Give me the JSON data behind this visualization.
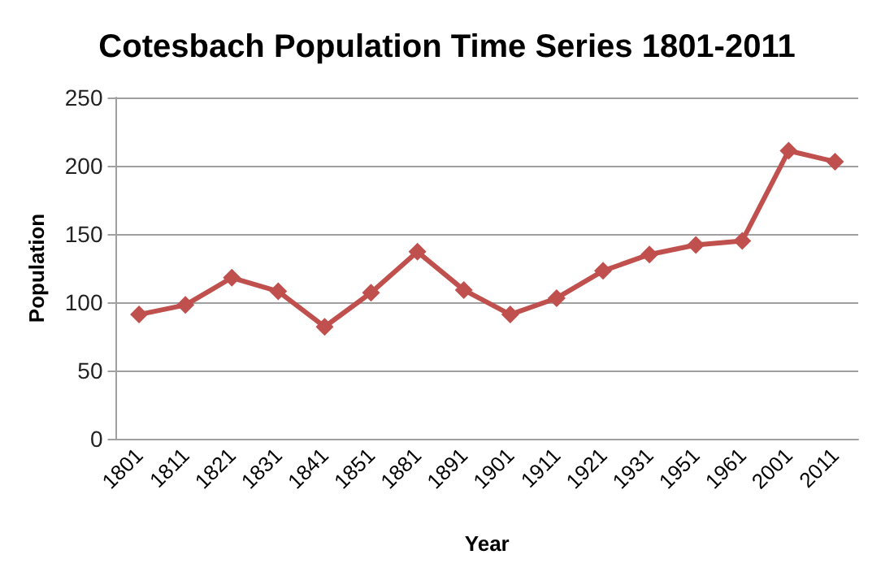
{
  "chart_data": {
    "type": "line",
    "title": "Cotesbach Population Time Series 1801-2011",
    "xlabel": "Year",
    "ylabel": "Population",
    "categories": [
      "1801",
      "1811",
      "1821",
      "1831",
      "1841",
      "1851",
      "1881",
      "1891",
      "1901",
      "1911",
      "1921",
      "1931",
      "1951",
      "1961",
      "2001",
      "2011"
    ],
    "series": [
      {
        "color": "#c0504d",
        "values": [
          91,
          98,
          118,
          108,
          82,
          107,
          137,
          109,
          91,
          103,
          123,
          135,
          142,
          145,
          211,
          203
        ]
      }
    ],
    "ylim": [
      0,
      250
    ],
    "yticks": [
      0,
      50,
      100,
      150,
      200,
      250
    ],
    "grid": "y",
    "marker": "diamond",
    "line_style": "solid"
  }
}
